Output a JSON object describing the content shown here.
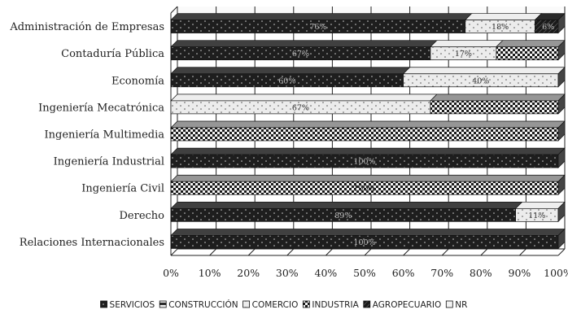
{
  "chart_data": {
    "type": "bar",
    "orientation": "horizontal",
    "stacked": true,
    "percent": true,
    "title": "",
    "xlabel": "",
    "ylabel": "",
    "xlim": [
      0,
      100
    ],
    "grid": true,
    "legend_position": "bottom",
    "x_ticks": [
      "0%",
      "10%",
      "20%",
      "30%",
      "40%",
      "50%",
      "60%",
      "70%",
      "80%",
      "90%",
      "100%"
    ],
    "categories": [
      "Administración de Empresas",
      "Contaduría Pública",
      "Economía",
      "Ingeniería Mecatrónica",
      "Ingeniería Multimedia",
      "Ingeniería Industrial",
      "Ingeniería Civil",
      "Derecho",
      "Relaciones Internacionales"
    ],
    "series": [
      {
        "name": "SERVICIOS",
        "pattern": "dark-dots",
        "values": [
          76,
          67,
          60,
          0,
          0,
          100,
          0,
          89,
          100
        ],
        "labels": [
          "76%",
          "67%",
          "60%",
          "",
          "",
          "100%",
          "",
          "89%",
          "100%"
        ]
      },
      {
        "name": "CONSTRUCCIÓN",
        "pattern": "dark-half",
        "values": [
          0,
          0,
          0,
          0,
          0,
          0,
          0,
          0,
          0
        ],
        "labels": [
          "",
          "",
          "",
          "",
          "",
          "",
          "",
          "",
          ""
        ]
      },
      {
        "name": "COMERCIO",
        "pattern": "light-dots",
        "values": [
          18,
          17,
          40,
          67,
          0,
          0,
          0,
          11,
          0
        ],
        "labels": [
          "18%",
          "17%",
          "40%",
          "67%",
          "",
          "",
          "",
          "11%",
          ""
        ]
      },
      {
        "name": "INDUSTRIA",
        "pattern": "checker",
        "values": [
          0,
          16,
          0,
          33,
          100,
          0,
          100,
          0,
          0
        ],
        "labels": [
          "",
          "",
          "",
          "",
          "",
          "",
          "100%",
          "",
          ""
        ]
      },
      {
        "name": "AGROPECUARIO",
        "pattern": "dark",
        "values": [
          6,
          0,
          0,
          0,
          0,
          0,
          0,
          0,
          0
        ],
        "labels": [
          "6%",
          "",
          "",
          "",
          "",
          "",
          "",
          "",
          ""
        ]
      },
      {
        "name": "NR",
        "pattern": "light",
        "values": [
          0,
          0,
          0,
          0,
          0,
          0,
          0,
          0,
          0
        ],
        "labels": [
          "",
          "",
          "",
          "",
          "",
          "",
          "",
          "",
          ""
        ]
      }
    ]
  }
}
